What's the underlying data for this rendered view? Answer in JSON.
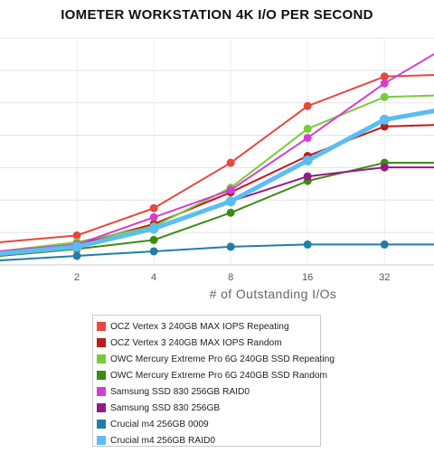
{
  "chart_data": {
    "type": "line",
    "title": "IOMETER WORKSTATION 4K I/O PER SECOND",
    "xlabel": "# of Outstanding I/Os",
    "ylabel": "",
    "x_scale": "log2",
    "categories": [
      "2",
      "4",
      "8",
      "16",
      "32"
    ],
    "x": [
      1,
      2,
      4,
      8,
      16,
      32,
      64
    ],
    "xlim": [
      1,
      50
    ],
    "ylim": [
      0,
      100
    ],
    "grid": true,
    "legend_position": "bottom",
    "series": [
      {
        "name": "OCZ Vertex 3 240GB MAX IOPS Repeating",
        "color": "#e8473f",
        "values": [
          10,
          13,
          25,
          45,
          70,
          83,
          84
        ]
      },
      {
        "name": "OCZ Vertex 3 240GB MAX IOPS Random",
        "color": "#c0191c",
        "values": [
          6,
          9,
          18,
          32,
          48,
          61,
          62
        ]
      },
      {
        "name": "OWC Mercury Extreme Pro 6G 240GB SSD Repeating",
        "color": "#78cc3a",
        "values": [
          6,
          10,
          17,
          34,
          60,
          74,
          75
        ]
      },
      {
        "name": "OWC Mercury Extreme Pro 6G 240GB SSD Random",
        "color": "#3e8a10",
        "values": [
          4,
          7,
          11,
          23,
          37,
          45,
          45
        ]
      },
      {
        "name": "Samsung SSD 830 256GB RAID0",
        "color": "#d23ed2",
        "values": [
          6,
          9,
          21,
          33,
          56,
          80,
          100
        ]
      },
      {
        "name": "Samsung SSD 830 256GB",
        "color": "#901d86",
        "values": [
          5,
          8,
          16,
          28,
          39,
          43,
          43
        ]
      },
      {
        "name": "Crucial m4 256GB 0009",
        "color": "#217ea6",
        "values": [
          2,
          4,
          6,
          8,
          9,
          9,
          9
        ]
      },
      {
        "name": "Crucial m4 256GB RAID0",
        "color": "#5bbdf3",
        "values": [
          5,
          8,
          16,
          28,
          46,
          64,
          70
        ]
      }
    ]
  }
}
